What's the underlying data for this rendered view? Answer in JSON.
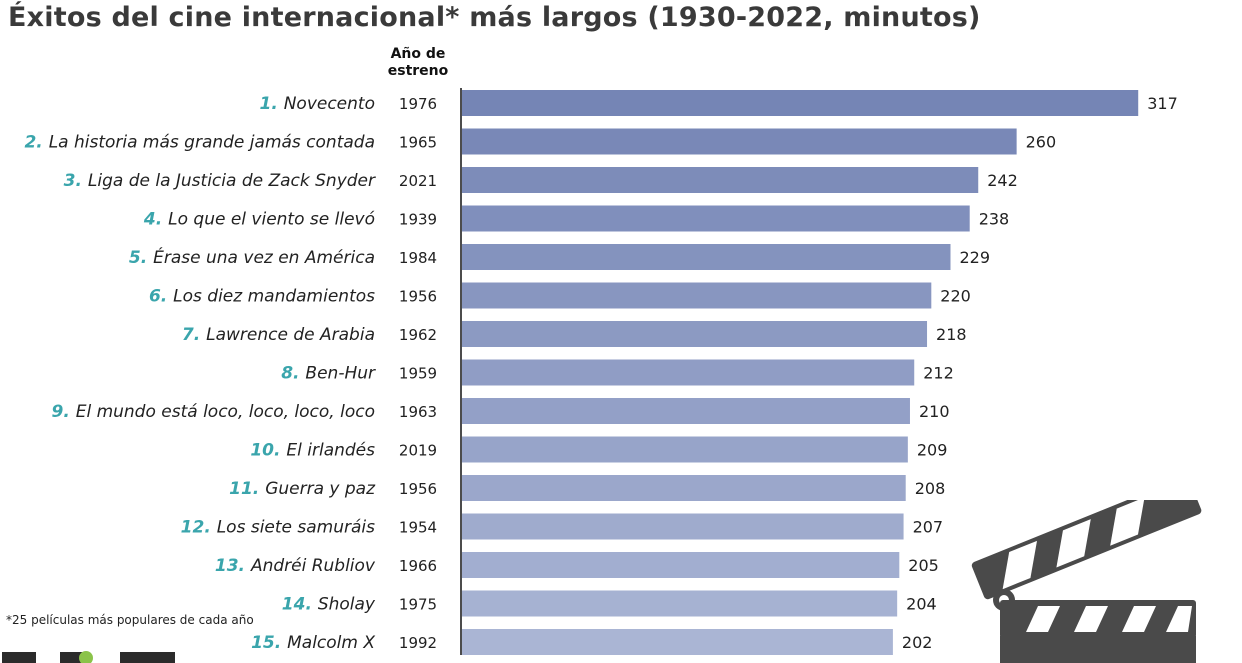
{
  "chart_data": {
    "type": "bar",
    "orientation": "horizontal",
    "title": "Éxitos del cine internacional* más largos (1930-2022, minutos)",
    "year_column_header": "Año de estreno",
    "categories": [
      "Novecento",
      "La historia más grande jamás contada",
      "Liga de la Justicia de Zack Snyder",
      "Lo que el viento se llevó",
      "Érase una vez en América",
      "Los diez mandamientos",
      "Lawrence de Arabia",
      "Ben-Hur",
      "El mundo está loco, loco, loco, loco",
      "El irlandés",
      "Guerra y paz",
      "Los siete samuráis",
      "Andréi Rubliov",
      "Sholay",
      "Malcolm X"
    ],
    "ranks": [
      "1.",
      "2.",
      "3.",
      "4.",
      "5.",
      "6.",
      "7.",
      "8.",
      "9.",
      "10.",
      "11.",
      "12.",
      "13.",
      "14.",
      "15."
    ],
    "years": [
      "1976",
      "1965",
      "2021",
      "1939",
      "1984",
      "1956",
      "1962",
      "1959",
      "1963",
      "2019",
      "1956",
      "1954",
      "1966",
      "1975",
      "1992"
    ],
    "values": [
      317,
      260,
      242,
      238,
      229,
      220,
      218,
      212,
      210,
      209,
      208,
      207,
      205,
      204,
      202
    ],
    "bar_color_start": "#7585b5",
    "bar_color_end": "#aab5d4",
    "rank_color": "#3aa5ac",
    "footnote": "*25 películas más populares de cada año"
  }
}
